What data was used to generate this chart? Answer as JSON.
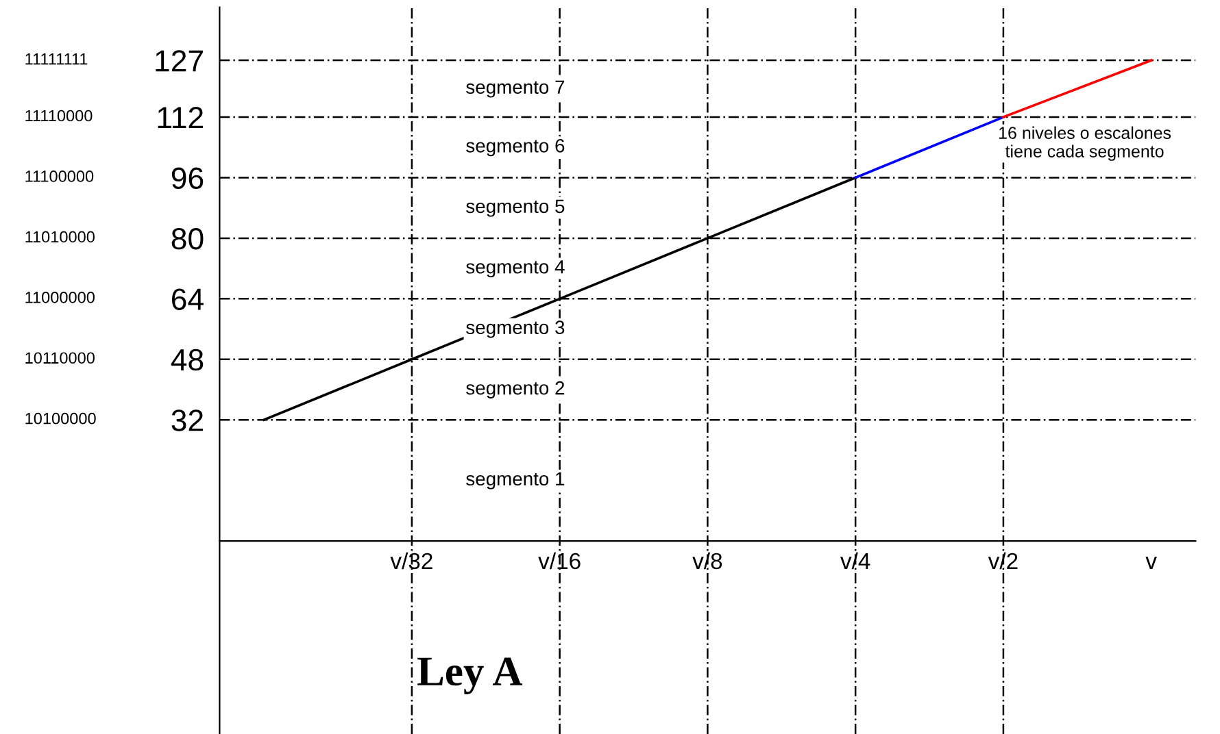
{
  "chart_data": {
    "type": "line",
    "title": "Ley A",
    "categories": [
      null,
      "v/32",
      "v/16",
      "v/8",
      "v/4",
      "v/2",
      "v"
    ],
    "ylim": [
      -51,
      141
    ],
    "yticks": [
      32,
      48,
      64,
      80,
      96,
      112,
      127
    ],
    "grid": false,
    "legend": false,
    "marker": "none",
    "line_style": "solid",
    "series": [
      {
        "color": "#000000",
        "values": [
          32,
          48,
          64,
          80,
          96,
          null,
          null
        ]
      },
      {
        "color": "#0000ff",
        "values": [
          null,
          null,
          null,
          null,
          96,
          112,
          null
        ]
      },
      {
        "color": "#ff0000",
        "values": [
          null,
          null,
          null,
          null,
          null,
          112,
          127
        ]
      }
    ],
    "ref_lines": [
      {
        "axis": "y",
        "value": 127,
        "line_style": "dashed",
        "color": "#000000"
      },
      {
        "axis": "y",
        "value": 112,
        "line_style": "dashed",
        "color": "#000000"
      },
      {
        "axis": "y",
        "value": 96,
        "line_style": "dashed",
        "color": "#000000"
      },
      {
        "axis": "y",
        "value": 80,
        "line_style": "dashed",
        "color": "#000000"
      },
      {
        "axis": "y",
        "value": 64,
        "line_style": "dashed",
        "color": "#000000"
      },
      {
        "axis": "y",
        "value": 48,
        "line_style": "dashed",
        "color": "#000000"
      },
      {
        "axis": "y",
        "value": 32,
        "line_style": "dashed",
        "color": "#000000"
      },
      {
        "axis": "x",
        "value": "v/32",
        "line_style": "dashed",
        "color": "#000000"
      },
      {
        "axis": "x",
        "value": "v/16",
        "line_style": "dashed",
        "color": "#000000"
      },
      {
        "axis": "x",
        "value": "v/8",
        "line_style": "dashed",
        "color": "#000000"
      },
      {
        "axis": "x",
        "value": "v/4",
        "line_style": "dashed",
        "color": "#000000"
      },
      {
        "axis": "x",
        "value": "v/2",
        "line_style": "dashed",
        "color": "#000000"
      }
    ],
    "annotations": [
      "11111111",
      "11110000",
      "11100000",
      "11010000",
      "11000000",
      "10110000",
      "10100000",
      "16 niveles o escalones\ntiene cada segmento",
      "segmento 7",
      "segmento 6",
      "segmento 5",
      "segmento 4",
      "segmento 3",
      "segmento 2",
      "segmento 1"
    ]
  }
}
